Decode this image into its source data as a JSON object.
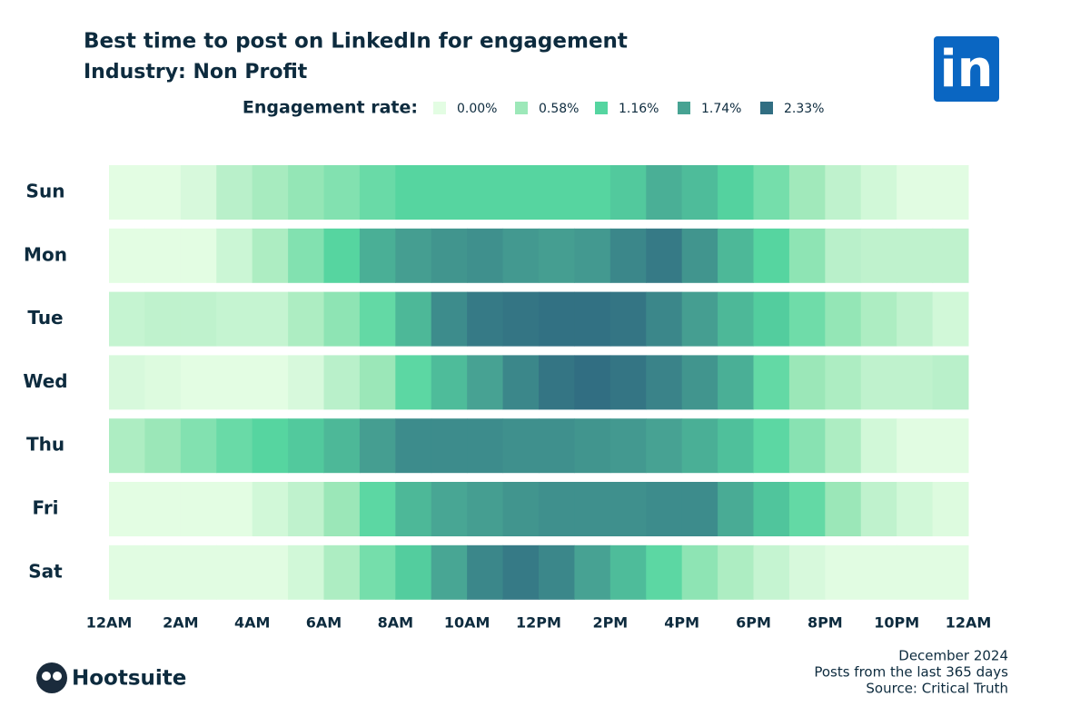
{
  "chart_data": {
    "type": "heatmap",
    "title": "Best time to post on LinkedIn for engagement",
    "subtitle": "Industry: Non Profit",
    "legend_title": "Engagement rate:",
    "legend_ticks": [
      {
        "value": 0,
        "label": "0.00%"
      },
      {
        "value": 0.58,
        "label": "0.58%"
      },
      {
        "value": 1.16,
        "label": "1.16%"
      },
      {
        "value": 1.74,
        "label": "1.74%"
      },
      {
        "value": 2.33,
        "label": "2.33%"
      }
    ],
    "colors": [
      "#e3fde3",
      "#9de8b9",
      "#55d5a0",
      "#47a393",
      "#316e82"
    ],
    "rows": [
      "Sun",
      "Mon",
      "Tue",
      "Wed",
      "Thu",
      "Fri",
      "Sat"
    ],
    "xlim": [
      0,
      24
    ],
    "xticks": [
      {
        "value": 0,
        "label": "12AM"
      },
      {
        "value": 2,
        "label": "2AM"
      },
      {
        "value": 4,
        "label": "4AM"
      },
      {
        "value": 6,
        "label": "6AM"
      },
      {
        "value": 8,
        "label": "8AM"
      },
      {
        "value": 10,
        "label": "10AM"
      },
      {
        "value": 12,
        "label": "12PM"
      },
      {
        "value": 14,
        "label": "2PM"
      },
      {
        "value": 16,
        "label": "4PM"
      },
      {
        "value": 18,
        "label": "6PM"
      },
      {
        "value": 20,
        "label": "8PM"
      },
      {
        "value": 22,
        "label": "10PM"
      },
      {
        "value": 24,
        "label": "12AM"
      }
    ],
    "values": [
      [
        0,
        0,
        0.1,
        0.35,
        0.5,
        0.65,
        0.8,
        1.0,
        1.15,
        1.15,
        1.15,
        1.15,
        1.15,
        1.15,
        1.3,
        1.6,
        1.45,
        1.2,
        0.9,
        0.55,
        0.3,
        0.15,
        0.02,
        0.02
      ],
      [
        0,
        0,
        0,
        0.2,
        0.45,
        0.8,
        1.15,
        1.6,
        1.8,
        1.9,
        1.95,
        1.85,
        1.8,
        1.85,
        2.05,
        2.2,
        1.9,
        1.5,
        1.15,
        0.7,
        0.35,
        0.3,
        0.3,
        0.3
      ],
      [
        0.25,
        0.3,
        0.3,
        0.25,
        0.25,
        0.45,
        0.7,
        1.05,
        1.5,
        2.0,
        2.2,
        2.25,
        2.3,
        2.3,
        2.25,
        2.05,
        1.8,
        1.5,
        1.25,
        0.95,
        0.65,
        0.45,
        0.3,
        0.15
      ],
      [
        0.1,
        0.05,
        0,
        0,
        0,
        0.1,
        0.35,
        0.6,
        1.1,
        1.45,
        1.75,
        2.05,
        2.25,
        2.33,
        2.25,
        2.1,
        1.9,
        1.6,
        1.05,
        0.6,
        0.45,
        0.3,
        0.3,
        0.35
      ],
      [
        0.45,
        0.6,
        0.8,
        1.0,
        1.15,
        1.3,
        1.5,
        1.8,
        2.0,
        2.0,
        2.0,
        1.95,
        1.95,
        1.9,
        1.85,
        1.75,
        1.6,
        1.4,
        1.1,
        0.75,
        0.45,
        0.15,
        0.02,
        0.02
      ],
      [
        0,
        0,
        0,
        0,
        0.15,
        0.3,
        0.6,
        1.1,
        1.5,
        1.7,
        1.8,
        1.9,
        1.95,
        1.95,
        1.95,
        2.0,
        2.0,
        1.65,
        1.35,
        1.05,
        0.6,
        0.3,
        0.15,
        0.05
      ],
      [
        0.02,
        0.02,
        0.02,
        0.02,
        0.02,
        0.15,
        0.45,
        0.9,
        1.25,
        1.7,
        2.05,
        2.2,
        2.05,
        1.75,
        1.45,
        1.1,
        0.7,
        0.45,
        0.25,
        0.1,
        0.02,
        0.02,
        0.02,
        0.02
      ]
    ]
  },
  "notes": [
    "December 2024",
    "Posts from the last 365 days",
    "Source: Critical Truth"
  ],
  "brand": "Hootsuite",
  "logo": "in"
}
